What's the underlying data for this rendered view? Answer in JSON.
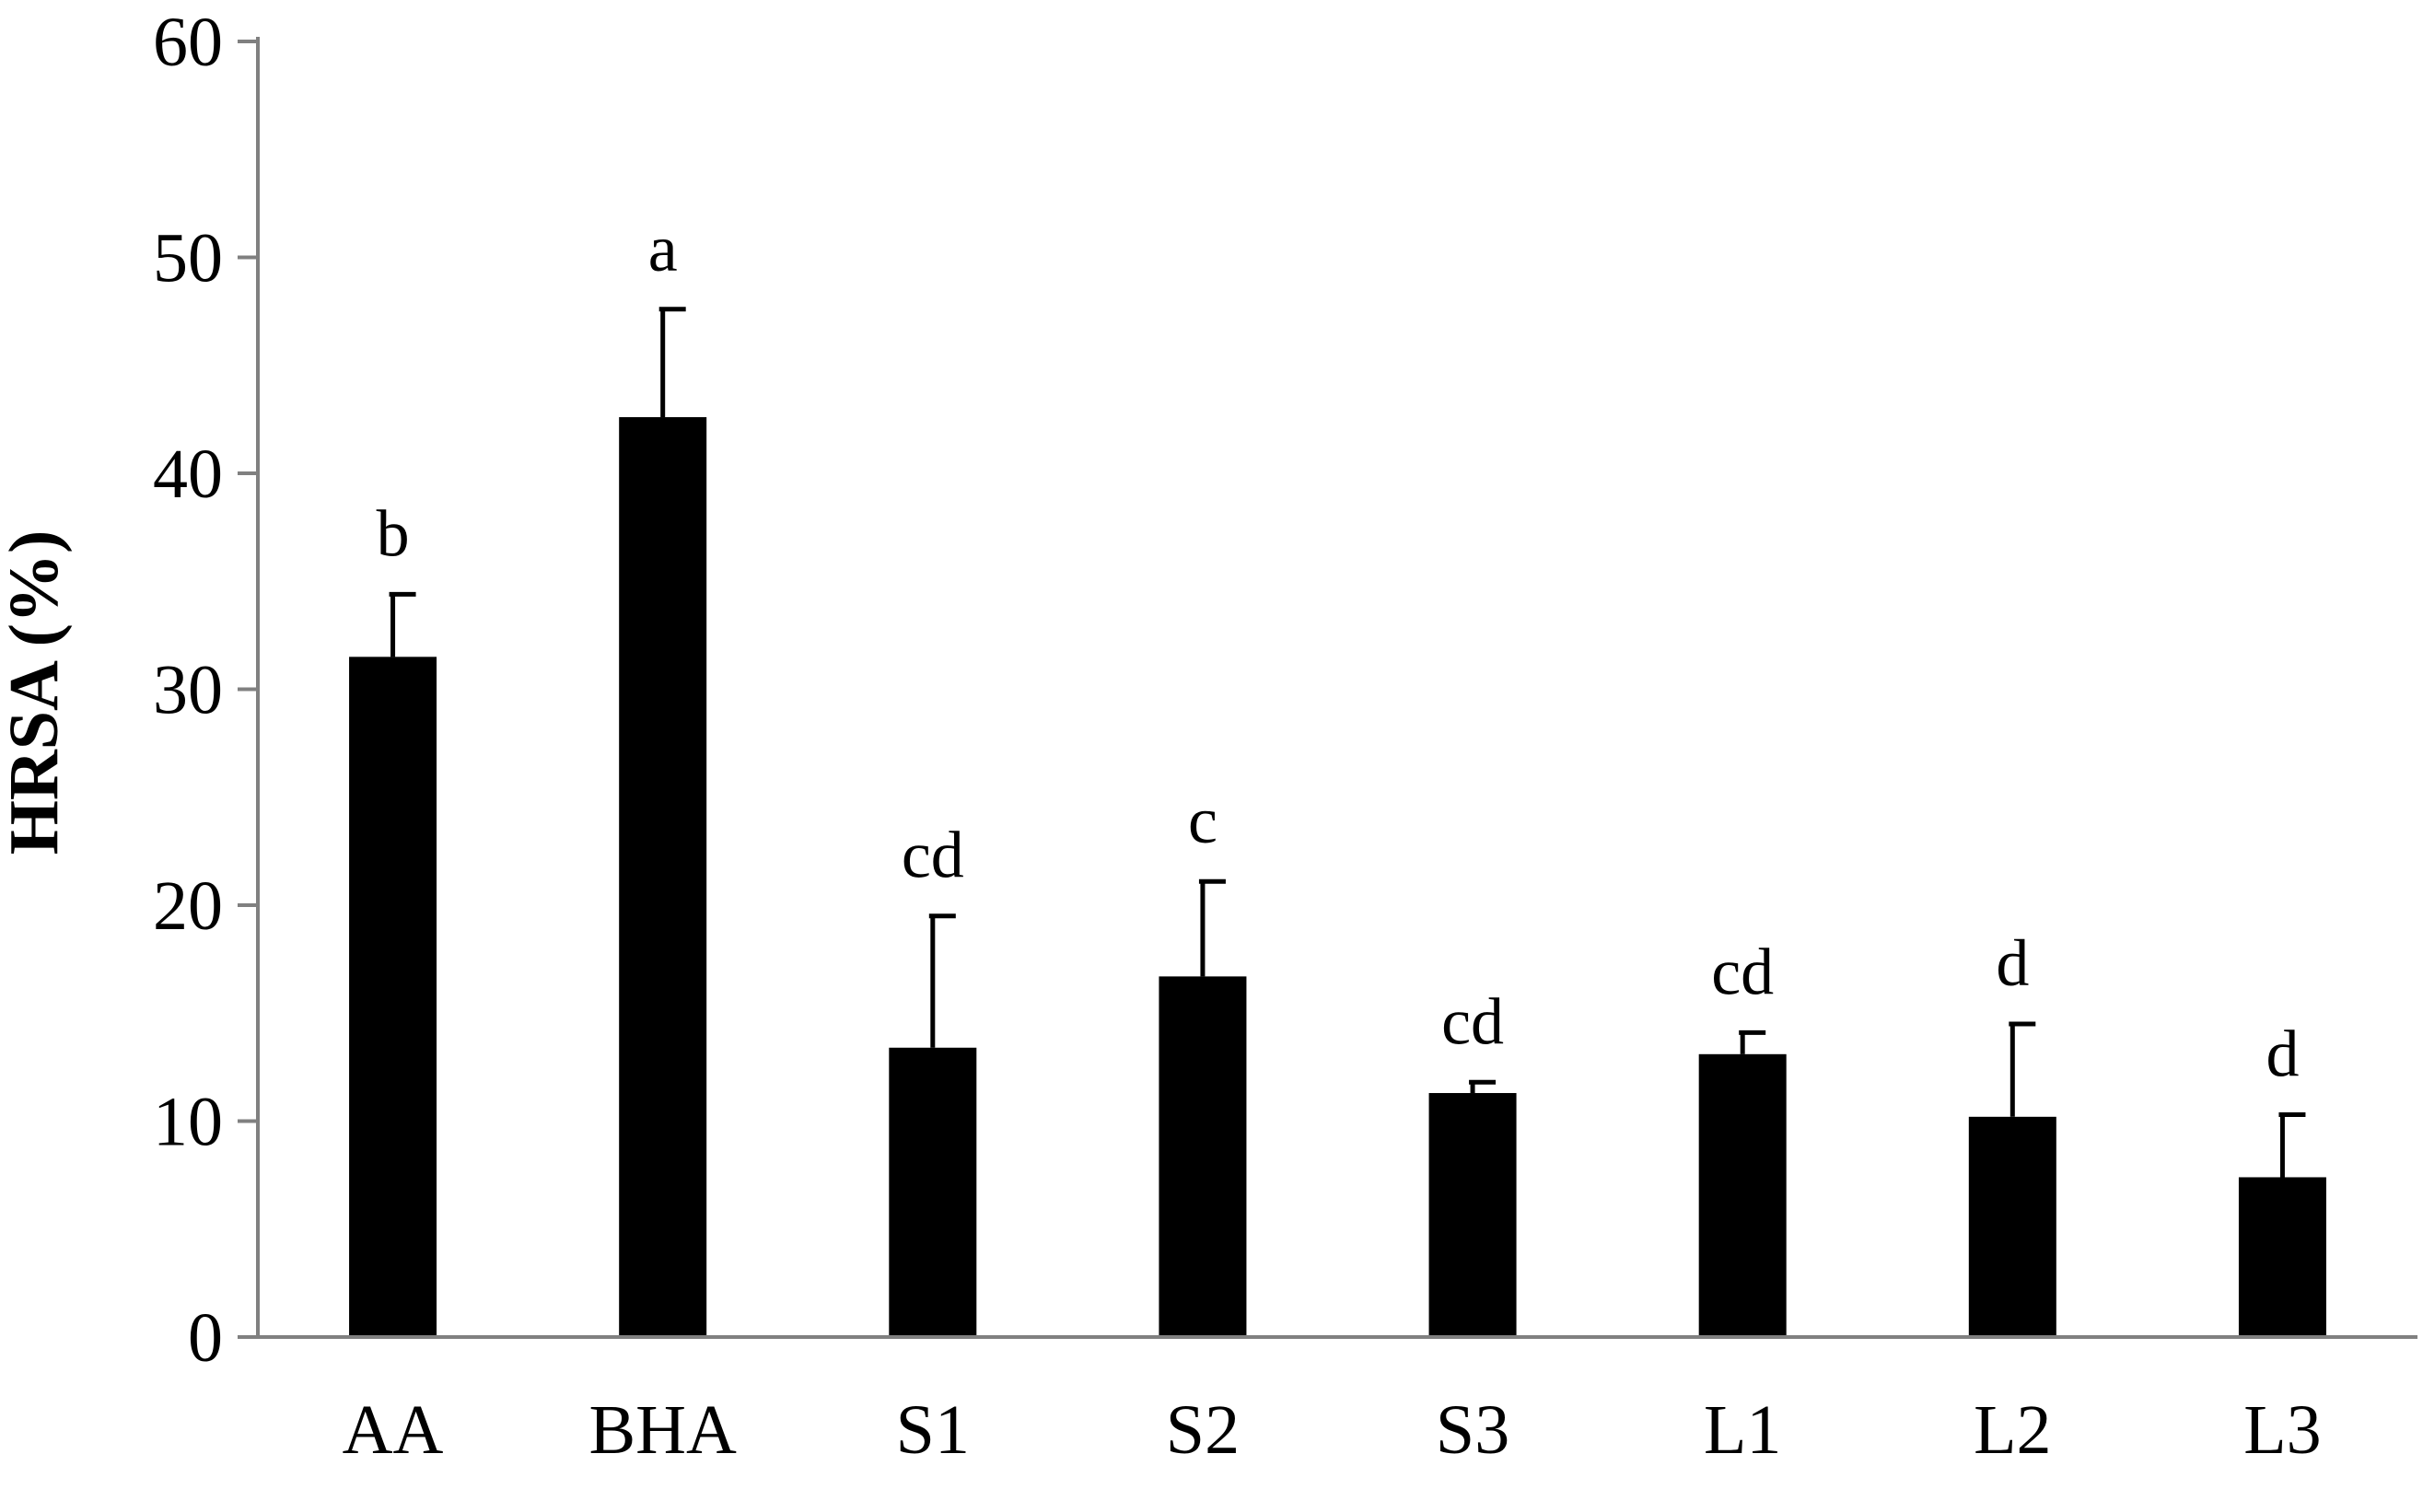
{
  "chart_data": {
    "type": "bar",
    "title": "",
    "xlabel": "",
    "ylabel": "HRSA (%)",
    "ylim": [
      0,
      60
    ],
    "yticks": [
      0,
      10,
      20,
      30,
      40,
      50,
      60
    ],
    "grid": false,
    "legend": "none",
    "categories": [
      "AA",
      "BHA",
      "S1",
      "S2",
      "S3",
      "L1",
      "L2",
      "L3"
    ],
    "values": [
      31.5,
      42.6,
      13.4,
      16.7,
      11.3,
      13.1,
      10.2,
      7.4
    ],
    "errors": [
      2.9,
      5.0,
      6.1,
      4.4,
      0.5,
      1.0,
      4.3,
      2.9
    ],
    "significance_labels": [
      "b",
      "a",
      "cd",
      "c",
      "cd",
      "cd",
      "d",
      "d"
    ],
    "colors": {
      "bar": "#000000",
      "axis": "#808080",
      "error_bar": "#000000"
    }
  }
}
